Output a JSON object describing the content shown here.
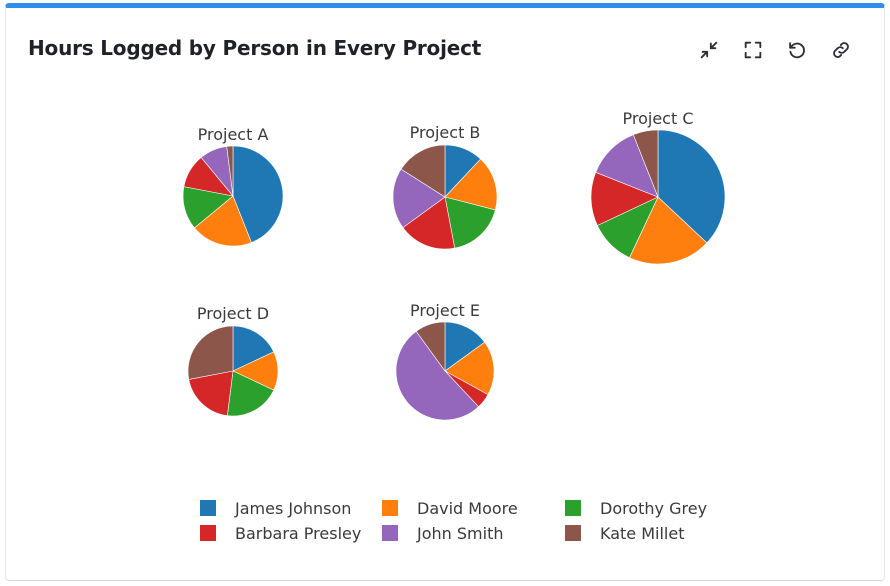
{
  "header": {
    "title": "Hours Logged by Person in Every Project"
  },
  "toolbar": {
    "icons": [
      "collapse-icon",
      "fullscreen-icon",
      "refresh-icon",
      "link-icon"
    ]
  },
  "chart_data": {
    "type": "pie",
    "legend_position": "bottom",
    "people": [
      {
        "name": "James Johnson",
        "color": "#1f77b4"
      },
      {
        "name": "David Moore",
        "color": "#ff7f0e"
      },
      {
        "name": "Dorothy Grey",
        "color": "#2ca02c"
      },
      {
        "name": "Barbara Presley",
        "color": "#d62728"
      },
      {
        "name": "John Smith",
        "color": "#9467bd"
      },
      {
        "name": "Kate Millet",
        "color": "#8c564b"
      }
    ],
    "pies": [
      {
        "title": "Project A",
        "values": {
          "James Johnson": 44,
          "David Moore": 20,
          "Dorothy Grey": 14,
          "Barbara Presley": 11,
          "John Smith": 9,
          "Kate Millet": 2
        }
      },
      {
        "title": "Project B",
        "values": {
          "James Johnson": 12,
          "David Moore": 17,
          "Dorothy Grey": 18,
          "Barbara Presley": 18,
          "John Smith": 19,
          "Kate Millet": 16
        }
      },
      {
        "title": "Project C",
        "values": {
          "James Johnson": 37,
          "David Moore": 20,
          "Dorothy Grey": 11,
          "Barbara Presley": 13,
          "John Smith": 13,
          "Kate Millet": 6
        }
      },
      {
        "title": "Project D",
        "values": {
          "James Johnson": 18,
          "David Moore": 14,
          "Dorothy Grey": 20,
          "Barbara Presley": 20,
          "John Smith": 0,
          "Kate Millet": 28
        }
      },
      {
        "title": "Project E",
        "values": {
          "James Johnson": 15,
          "David Moore": 18,
          "Dorothy Grey": 0,
          "Barbara Presley": 5,
          "John Smith": 52,
          "Kate Millet": 10
        }
      }
    ]
  }
}
